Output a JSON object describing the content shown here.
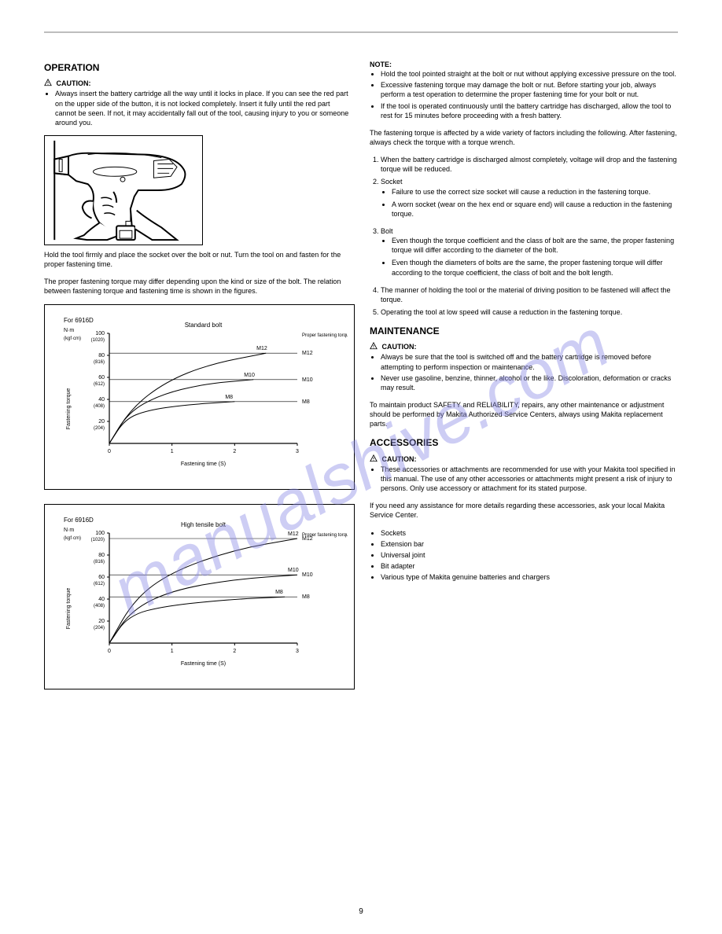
{
  "header": {
    "page_number": "9"
  },
  "watermark": {
    "text": "manualshive.com"
  },
  "left": {
    "h_operation": "OPERATION",
    "caution_label": "CAUTION:",
    "caution_bullets": [
      "Always insert the battery cartridge all the way until it locks in place. If you can see the red part on the upper side of the button, it is not locked completely. Insert it fully until the red part cannot be seen. If not, it may accidentally fall out of the tool, causing injury to you or someone around you."
    ],
    "figure_caption": "Hold the tool firmly and place the socket over the bolt or nut. Turn the tool on and fasten for the proper fastening time.",
    "para_torque_intro": "The proper fastening torque may differ depending upon the kind or size of the bolt. The relation between fastening torque and fastening time is shown in the figures."
  },
  "chart1": {
    "box_title": "For 6916D",
    "sub_title": "Standard bolt",
    "ylabel": "Fastening torque",
    "xlabel": "Fastening time (S)",
    "ylabel_unit_nm": "N·m",
    "ylabel_unit_kgf": "(kgf·cm)",
    "x_ticks": [
      "0",
      "1",
      "2",
      "3"
    ],
    "y_ticks_nm": [
      "20",
      "40",
      "60",
      "80",
      "100"
    ],
    "y_ticks_kgf": [
      "(204)",
      "(408)",
      "(612)",
      "(816)",
      "(1020)"
    ],
    "series": [
      {
        "label": "M8",
        "points": [
          [
            0,
            0
          ],
          [
            0.25,
            22
          ],
          [
            0.6,
            30
          ],
          [
            1.2,
            35
          ],
          [
            2.0,
            38
          ]
        ]
      },
      {
        "label": "M10",
        "points": [
          [
            0,
            0
          ],
          [
            0.3,
            28
          ],
          [
            0.8,
            44
          ],
          [
            1.5,
            54
          ],
          [
            2.3,
            58
          ]
        ]
      },
      {
        "label": "M12",
        "points": [
          [
            0,
            0
          ],
          [
            0.35,
            32
          ],
          [
            0.9,
            56
          ],
          [
            1.6,
            72
          ],
          [
            2.5,
            82
          ]
        ]
      }
    ],
    "proper_labels": [
      "M8",
      "M10",
      "M12"
    ]
  },
  "chart2": {
    "box_title": "For 6916D",
    "sub_title": "High tensile bolt",
    "ylabel": "Fastening torque",
    "xlabel": "Fastening time (S)",
    "ylabel_unit_nm": "N·m",
    "ylabel_unit_kgf": "(kgf·cm)",
    "x_ticks": [
      "0",
      "1",
      "2",
      "3"
    ],
    "y_ticks_nm": [
      "20",
      "40",
      "60",
      "80",
      "100"
    ],
    "y_ticks_kgf": [
      "(204)",
      "(408)",
      "(612)",
      "(816)",
      "(1020)"
    ],
    "series": [
      {
        "label": "M8",
        "points": [
          [
            0,
            0
          ],
          [
            0.3,
            25
          ],
          [
            0.9,
            34
          ],
          [
            2.0,
            40
          ],
          [
            2.8,
            42
          ]
        ]
      },
      {
        "label": "M10",
        "points": [
          [
            0,
            0
          ],
          [
            0.35,
            30
          ],
          [
            1.0,
            48
          ],
          [
            2.0,
            58
          ],
          [
            3.0,
            62
          ]
        ]
      },
      {
        "label": "M12",
        "points": [
          [
            0,
            0
          ],
          [
            0.4,
            40
          ],
          [
            1.0,
            65
          ],
          [
            2.0,
            85
          ],
          [
            3.0,
            95
          ]
        ]
      }
    ],
    "proper_labels": [
      "M8",
      "M10",
      "M12"
    ]
  },
  "right": {
    "notes_label": "NOTE:",
    "notes_bullets": [
      "Hold the tool pointed straight at the bolt or nut without applying excessive pressure on the tool.",
      "Excessive fastening torque may damage the bolt or nut. Before starting your job, always perform a test operation to determine the proper fastening time for your bolt or nut.",
      "If the tool is operated continuously until the battery cartridge has discharged, allow the tool to rest for 15 minutes before proceeding with a fresh battery."
    ],
    "para_factors_intro": "The fastening torque is affected by a wide variety of factors including the following. After fastening, always check the torque with a torque wrench.",
    "factors": [
      "When the battery cartridge is discharged almost completely, voltage will drop and the fastening torque will be reduced.",
      "Socket",
      "Bolt",
      "The manner of holding the tool or the material of driving position to be fastened will affect the torque.",
      "Operating the tool at low speed will cause a reduction in the fastening torque."
    ],
    "socket_sub": [
      "Failure to use the correct size socket will cause a reduction in the fastening torque.",
      "A worn socket (wear on the hex end or square end) will cause a reduction in the fastening torque."
    ],
    "bolt_sub": [
      "Even though the torque coefficient and the class of bolt are the same, the proper fastening torque will differ according to the diameter of the bolt.",
      "Even though the diameters of bolts are the same, the proper fastening torque will differ according to the torque coefficient, the class of bolt and the bolt length."
    ],
    "h_maintenance": "MAINTENANCE",
    "maint_caution_label": "CAUTION:",
    "maint_caution_bullets": [
      "Always be sure that the tool is switched off and the battery cartridge is removed before attempting to perform inspection or maintenance.",
      "Never use gasoline, benzine, thinner, alcohol or the like. Discoloration, deformation or cracks may result."
    ],
    "maint_para": "To maintain product SAFETY and RELIABILITY, repairs, any other maintenance or adjustment should be performed by Makita Authorized Service Centers, always using Makita replacement parts.",
    "h_accessories": "ACCESSORIES",
    "acc_caution_label": "CAUTION:",
    "acc_caution_text": "These accessories or attachments are recommended for use with your Makita tool specified in this manual. The use of any other accessories or attachments might present a risk of injury to persons. Only use accessory or attachment for its stated purpose.",
    "acc_para": "If you need any assistance for more details regarding these accessories, ask your local Makita Service Center.",
    "acc_bullets": [
      "Sockets",
      "Extension bar",
      "Universal joint",
      "Bit adapter",
      "Various type of Makita genuine batteries and chargers"
    ]
  }
}
